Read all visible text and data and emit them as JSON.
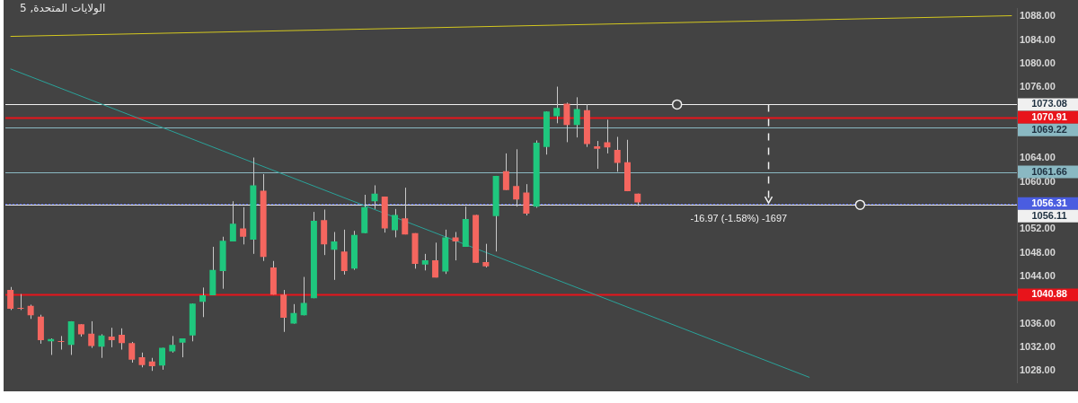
{
  "chart_data": {
    "type": "candlestick",
    "title": "الولايات المتحدة, 5",
    "categories": [
      null,
      null,
      null,
      null,
      null,
      null,
      null,
      null,
      null,
      null,
      null,
      null,
      null,
      null,
      null,
      null,
      null,
      null,
      null,
      null,
      null,
      null,
      null,
      null,
      null,
      null,
      null,
      null,
      null,
      null,
      null,
      null,
      null,
      null,
      null,
      null,
      null,
      null,
      null,
      null,
      null,
      null,
      null,
      null,
      null,
      null,
      null,
      null,
      null,
      null,
      null,
      null,
      null,
      null,
      null,
      null,
      null,
      null,
      null,
      null,
      null,
      null,
      null,
      null,
      null,
      null,
      null,
      null,
      null,
      null,
      null,
      null,
      null,
      null,
      null,
      null,
      null,
      null,
      null,
      null,
      null,
      null,
      null,
      null,
      null,
      null,
      null,
      null,
      null,
      null,
      null,
      null,
      null,
      null,
      null,
      null,
      null,
      null,
      null,
      null
    ],
    "ohlc": [
      [
        1041.7,
        1042.2,
        1038.3,
        1038.5
      ],
      [
        1038.6,
        1041.0,
        1038.3,
        1038.5
      ],
      [
        1039.0,
        1039.2,
        1036.8,
        1037.4
      ],
      [
        1037.2,
        1037.5,
        1032.6,
        1033.2
      ],
      [
        1033.0,
        1033.5,
        1030.7,
        1033.4
      ],
      [
        1033.0,
        1033.9,
        1031.6,
        1032.9
      ],
      [
        1032.4,
        1036.4,
        1030.7,
        1036.4
      ],
      [
        1035.9,
        1035.9,
        1033.8,
        1034.2
      ],
      [
        1034.3,
        1036.4,
        1031.9,
        1032.2
      ],
      [
        1032.1,
        1034.2,
        1030.2,
        1034.0
      ],
      [
        1033.8,
        1035.3,
        1032.0,
        1033.2
      ],
      [
        1034.1,
        1035.2,
        1031.6,
        1032.7
      ],
      [
        1032.7,
        1032.9,
        1029.4,
        1029.9
      ],
      [
        1030.3,
        1031.1,
        1028.6,
        1029.0
      ],
      [
        1029.6,
        1030.2,
        1028.0,
        1028.8
      ],
      [
        1028.9,
        1031.9,
        1028.2,
        1031.9
      ],
      [
        1031.3,
        1033.9,
        1031.1,
        1032.4
      ],
      [
        1032.8,
        1033.5,
        1030.3,
        1033.5
      ],
      [
        1034.0,
        1039.4,
        1033.0,
        1039.4
      ],
      [
        1039.7,
        1042.1,
        1037.1,
        1040.8
      ],
      [
        1040.8,
        1049.0,
        1040.8,
        1045.1
      ],
      [
        1044.9,
        1050.7,
        1041.9,
        1050.0
      ],
      [
        1049.9,
        1056.7,
        1049.9,
        1052.9
      ],
      [
        1052.1,
        1055.7,
        1049.4,
        1050.7
      ],
      [
        1050.2,
        1064.1,
        1047.8,
        1059.4
      ],
      [
        1058.5,
        1061.3,
        1046.6,
        1047.3
      ],
      [
        1045.5,
        1046.6,
        1040.9,
        1040.9
      ],
      [
        1040.9,
        1041.7,
        1034.6,
        1037.0
      ],
      [
        1036.0,
        1039.3,
        1036.0,
        1037.8
      ],
      [
        1037.4,
        1043.9,
        1037.4,
        1039.5
      ],
      [
        1040.3,
        1054.9,
        1040.3,
        1053.4
      ],
      [
        1053.5,
        1055.3,
        1047.6,
        1049.4
      ],
      [
        1048.5,
        1051.5,
        1043.4,
        1049.9
      ],
      [
        1048.2,
        1051.9,
        1044.3,
        1044.9
      ],
      [
        1045.3,
        1051.7,
        1045.1,
        1051.0
      ],
      [
        1051.3,
        1057.8,
        1051.3,
        1055.7
      ],
      [
        1056.7,
        1059.4,
        1055.4,
        1058.0
      ],
      [
        1057.5,
        1057.5,
        1051.4,
        1052.1
      ],
      [
        1051.8,
        1055.4,
        1050.6,
        1054.4
      ],
      [
        1053.8,
        1059.0,
        1051.1,
        1051.1
      ],
      [
        1051.3,
        1051.3,
        1045.3,
        1046.1
      ],
      [
        1046.0,
        1047.8,
        1045.0,
        1046.7
      ],
      [
        1046.7,
        1049.7,
        1043.8,
        1043.8
      ],
      [
        1044.8,
        1051.9,
        1044.4,
        1050.6
      ],
      [
        1050.6,
        1051.5,
        1046.7,
        1049.9
      ],
      [
        1049.0,
        1055.8,
        1049.0,
        1053.7
      ],
      [
        1054.4,
        1054.4,
        1046.3,
        1046.3
      ],
      [
        1046.4,
        1049.5,
        1045.5,
        1045.7
      ],
      [
        1054.2,
        1061.0,
        1048.2,
        1061.0
      ],
      [
        1061.8,
        1064.8,
        1058.6,
        1058.6
      ],
      [
        1059.3,
        1065.5,
        1055.8,
        1057.0
      ],
      [
        1058.2,
        1059.6,
        1054.3,
        1054.6
      ],
      [
        1055.8,
        1067.0,
        1055.6,
        1066.6
      ],
      [
        1065.9,
        1071.9,
        1064.6,
        1071.9
      ],
      [
        1071.1,
        1076.1,
        1069.9,
        1072.5
      ],
      [
        1073.2,
        1073.4,
        1066.7,
        1069.6
      ],
      [
        1069.6,
        1074.3,
        1067.5,
        1072.3
      ],
      [
        1072.1,
        1073.1,
        1065.9,
        1066.4
      ],
      [
        1066.0,
        1066.9,
        1062.2,
        1065.6
      ],
      [
        1066.7,
        1070.5,
        1064.8,
        1065.8
      ],
      [
        1065.4,
        1067.6,
        1061.7,
        1063.2
      ],
      [
        1063.3,
        1067.1,
        1058.4,
        1058.4
      ],
      [
        1058.0,
        1058.0,
        1055.9,
        1056.5
      ],
      null,
      null,
      null,
      null,
      null,
      null,
      null,
      null,
      null,
      null,
      null,
      null,
      null,
      null,
      null,
      null,
      null,
      null,
      null,
      null,
      null,
      null,
      null,
      null,
      null,
      null,
      null,
      null,
      null,
      null,
      null,
      null,
      null,
      null,
      null,
      null,
      null
    ],
    "colors": [
      "#f5665f",
      "#f5665f",
      "#f5665f",
      "#f5665f",
      "#1fc77e",
      "#f5665f",
      "#1fc77e",
      "#f5665f",
      "#f5665f",
      "#1fc77e",
      "#f5665f",
      "#f5665f",
      "#f5665f",
      "#f5665f",
      "#f5665f",
      "#1fc77e",
      "#1fc77e",
      "#1fc77e",
      "#1fc77e",
      "#1fc77e",
      "#1fc77e",
      "#1fc77e",
      "#1fc77e",
      "#f5665f",
      "#1fc77e",
      "#f5665f",
      "#f5665f",
      "#f5665f",
      "#1fc77e",
      "#1fc77e",
      "#1fc77e",
      "#f5665f",
      "#1fc77e",
      "#f5665f",
      "#1fc77e",
      "#1fc77e",
      "#1fc77e",
      "#f5665f",
      "#1fc77e",
      "#f5665f",
      "#f5665f",
      "#1fc77e",
      "#f5665f",
      "#1fc77e",
      "#f5665f",
      "#1fc77e",
      "#f5665f",
      "#f5665f",
      "#1fc77e",
      "#f5665f",
      "#f5665f",
      "#f5665f",
      "#1fc77e",
      "#1fc77e",
      "#1fc77e",
      "#f5665f",
      "#1fc77e",
      "#f5665f",
      "#f5665f",
      "#f5665f",
      "#f5665f",
      "#f5665f",
      "#f5665f",
      null,
      null,
      null,
      null,
      null,
      null,
      null,
      null,
      null,
      null,
      null,
      null,
      null,
      null,
      null,
      null,
      null,
      null,
      null,
      null,
      null,
      null,
      null,
      null,
      null,
      null,
      null,
      null,
      null,
      null,
      null,
      null,
      null,
      null,
      null,
      null,
      null
    ],
    "series": [
      {
        "type": "line",
        "color": "#d4c81f",
        "values": [
          1084.6,
          null,
          null,
          null,
          null,
          null,
          null,
          null,
          null,
          null,
          null,
          null,
          null,
          null,
          null,
          null,
          null,
          null,
          null,
          null,
          null,
          null,
          null,
          null,
          null,
          null,
          null,
          null,
          null,
          null,
          null,
          null,
          null,
          null,
          null,
          null,
          null,
          null,
          null,
          null,
          null,
          null,
          null,
          null,
          null,
          null,
          null,
          null,
          null,
          null,
          null,
          null,
          null,
          null,
          null,
          null,
          null,
          null,
          null,
          null,
          null,
          null,
          null,
          null,
          null,
          null,
          null,
          null,
          null,
          null,
          null,
          null,
          null,
          null,
          null,
          null,
          null,
          null,
          null,
          null,
          null,
          null,
          null,
          null,
          null,
          null,
          null,
          null,
          null,
          null,
          null,
          null,
          null,
          null,
          null,
          null,
          null,
          null,
          null,
          1088.1
        ]
      },
      {
        "type": "line",
        "color": "#2aa39a",
        "values": [
          1079.1,
          null,
          null,
          null,
          null,
          null,
          null,
          null,
          null,
          null,
          null,
          null,
          null,
          null,
          null,
          null,
          null,
          null,
          null,
          null,
          null,
          null,
          null,
          null,
          null,
          null,
          null,
          null,
          null,
          null,
          null,
          null,
          null,
          null,
          null,
          null,
          null,
          null,
          null,
          null,
          null,
          null,
          null,
          null,
          null,
          null,
          null,
          null,
          null,
          null,
          null,
          null,
          null,
          null,
          null,
          null,
          null,
          null,
          null,
          null,
          null,
          null,
          null,
          null,
          null,
          null,
          null,
          null,
          null,
          null,
          null,
          null,
          null,
          null,
          null,
          null,
          null,
          null,
          null,
          1026.9,
          null,
          null,
          null,
          null,
          null,
          null,
          null,
          null,
          null,
          null,
          null,
          null,
          null,
          null,
          null,
          null,
          null,
          null,
          null,
          null
        ]
      }
    ],
    "ylim": [
      1026,
      1089.3
    ],
    "yticks": [
      {
        "value": 1028,
        "label": "1028.00"
      },
      {
        "value": 1032,
        "label": "1032.00"
      },
      {
        "value": 1036,
        "label": "1036.00"
      },
      {
        "value": 1044,
        "label": "1044.00"
      },
      {
        "value": 1048,
        "label": "1048.00"
      },
      {
        "value": 1052,
        "label": "1052.00"
      },
      {
        "value": 1060,
        "label": "1060.00"
      },
      {
        "value": 1064,
        "label": "1064.00"
      },
      {
        "value": 1076,
        "label": "1076.00"
      },
      {
        "value": 1080,
        "label": "1080.00"
      },
      {
        "value": 1084,
        "label": "1084.00"
      },
      {
        "value": 1088,
        "label": "1088.00"
      }
    ],
    "ref_lines": [
      {
        "axis": "y",
        "value": 1073.08,
        "label": "1073.08",
        "color": "#f0f0f0",
        "line_style": "solid"
      },
      {
        "axis": "y",
        "value": 1056.11,
        "label": "1056.11",
        "color": "#f0f0f0",
        "line_style": "solid"
      },
      {
        "axis": "y",
        "value": 1070.91,
        "label": "1070.91",
        "color": "#e8141b",
        "line_style": "solid"
      },
      {
        "axis": "y",
        "value": 1069.22,
        "label": "1069.22",
        "color": "#8ab8c2",
        "line_style": "solid"
      },
      {
        "axis": "y",
        "value": 1061.66,
        "label": "1061.66",
        "color": "#8ab8c2",
        "line_style": "solid"
      },
      {
        "axis": "y",
        "value": 1056.31,
        "label": "1056.31",
        "color": "#4a5de0",
        "line_style": "dotted"
      },
      {
        "axis": "y",
        "value": 1040.88,
        "label": "1040.88",
        "color": "#e8141b",
        "line_style": "solid"
      }
    ],
    "annotations": [
      {
        "text": "-16.97 (-1.58%) -1697",
        "y": 1056.11
      }
    ],
    "grid": false,
    "legend": false
  }
}
